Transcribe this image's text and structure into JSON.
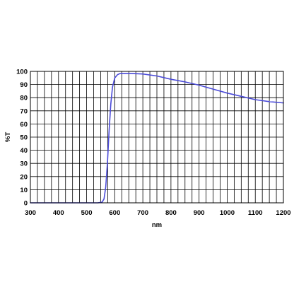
{
  "chart_data": {
    "type": "line",
    "xlabel": "nm",
    "ylabel": "%T",
    "xlim": [
      300,
      1200
    ],
    "ylim": [
      0,
      100
    ],
    "x_ticks": [
      "300",
      "400",
      "500",
      "600",
      "700",
      "800",
      "900",
      "1000",
      "1100",
      "1200"
    ],
    "y_ticks": [
      "0",
      "10",
      "20",
      "30",
      "40",
      "50",
      "60",
      "70",
      "80",
      "90",
      "100"
    ],
    "grid": true,
    "grid_x_step": 25,
    "grid_y_step": 10,
    "legend": "none",
    "colors": {
      "line": "#4b4bd8",
      "grid": "#000000",
      "background": "#ffffff"
    },
    "series": [
      {
        "x": [
          300,
          400,
          500,
          540,
          555,
          562,
          568,
          574,
          580,
          586,
          592,
          600,
          610,
          620,
          650,
          700,
          750,
          800,
          850,
          900,
          950,
          1000,
          1050,
          1100,
          1150,
          1200
        ],
        "y": [
          0,
          0,
          0,
          0,
          0.5,
          3,
          12,
          30,
          55,
          75,
          88,
          95,
          97.5,
          98.5,
          98.5,
          98,
          96.5,
          94,
          92,
          89.5,
          86.5,
          83.5,
          81,
          78.5,
          77,
          76
        ]
      }
    ]
  }
}
